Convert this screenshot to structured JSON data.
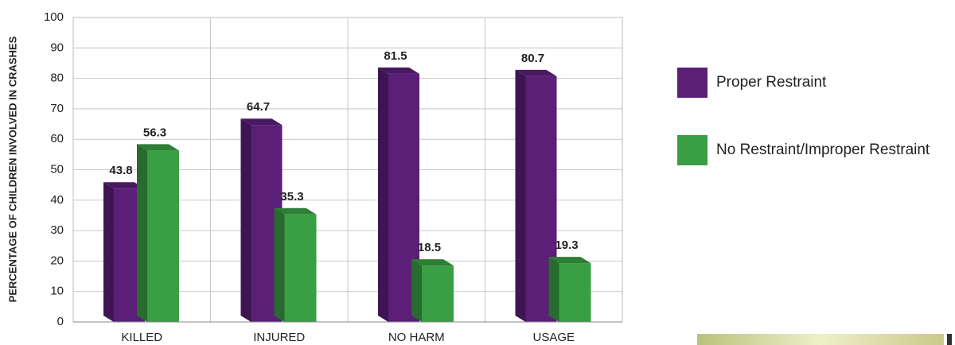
{
  "chart_data": {
    "type": "bar3d",
    "y_label": "PERCENTAGE OF CHILDREN INVOLVED IN CRASHES",
    "categories": [
      "KILLED",
      "INJURED",
      "NO HARM",
      "USAGE"
    ],
    "series": [
      {
        "name": "Proper Restraint",
        "color": "#5b1f78",
        "values": [
          43.8,
          64.7,
          81.5,
          80.7
        ]
      },
      {
        "name": "No Restraint/Improper Restraint",
        "color": "#3a9e44",
        "values": [
          56.3,
          35.3,
          18.5,
          19.3
        ]
      }
    ],
    "ylim": [
      0,
      100
    ],
    "yticks": [
      0,
      10,
      20,
      30,
      40,
      50,
      60,
      70,
      80,
      90,
      100
    ],
    "grid": true,
    "legend": "right"
  }
}
